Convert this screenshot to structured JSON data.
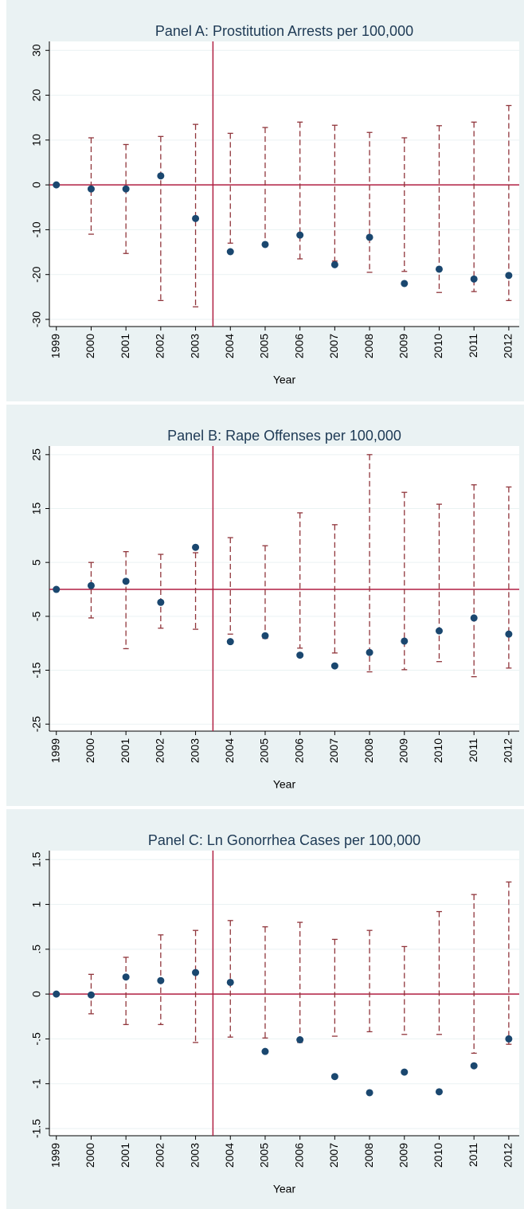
{
  "chart_data": [
    {
      "type": "errorbar",
      "title": "Panel A: Prostitution Arrests per 100,000",
      "xlabel": "Year",
      "x": [
        1999,
        2000,
        2001,
        2002,
        2003,
        2004,
        2005,
        2006,
        2007,
        2008,
        2009,
        2010,
        2011,
        2012
      ],
      "values": [
        0,
        -0.9,
        -0.9,
        2,
        -7.5,
        -14.9,
        -13.3,
        -11.2,
        -17.8,
        -11.7,
        -22,
        -18.8,
        -21,
        -20.2
      ],
      "upper": [
        null,
        10.5,
        9,
        10.8,
        13.5,
        11.5,
        12.8,
        14,
        13.3,
        11.7,
        10.5,
        13.2,
        14,
        17.7
      ],
      "lower": [
        null,
        -11,
        -15.3,
        -25.8,
        -27.2,
        -13,
        -13.3,
        -16.5,
        -17,
        -19.5,
        -19.3,
        -24,
        -23.8,
        -25.8
      ],
      "color": "#1a476f",
      "ci_color": "#90353b",
      "line_color": "#b01f42",
      "hline": 0,
      "vline": 2003.5,
      "xlim": [
        1998.8,
        2012.3
      ],
      "xticks": [
        1999,
        2000,
        2001,
        2002,
        2003,
        2004,
        2005,
        2006,
        2007,
        2008,
        2009,
        2010,
        2011,
        2012
      ],
      "ylim": [
        -31.6,
        32
      ],
      "yticks": [
        -30,
        -20,
        -10,
        0,
        10,
        20,
        30
      ],
      "grid": true
    },
    {
      "type": "errorbar",
      "title": "Panel B: Rape Offenses per 100,000",
      "xlabel": "Year",
      "x": [
        1999,
        2000,
        2001,
        2002,
        2003,
        2004,
        2005,
        2006,
        2007,
        2008,
        2009,
        2010,
        2011,
        2012
      ],
      "values": [
        0,
        0.7,
        1.5,
        -2.4,
        7.8,
        -9.7,
        -8.6,
        -12.2,
        -14.2,
        -11.7,
        -9.6,
        -7.7,
        -5.3,
        -8.3
      ],
      "upper": [
        null,
        5,
        7,
        6.5,
        6.8,
        9.6,
        8.1,
        14.2,
        12,
        25,
        18,
        15.8,
        19.4,
        19
      ],
      "lower": [
        null,
        -5.3,
        -11,
        -7.2,
        -7.4,
        -8.3,
        -9.1,
        -10.9,
        -11.8,
        -15.3,
        -14.9,
        -13.4,
        -16.2,
        -14.6
      ],
      "color": "#1a476f",
      "ci_color": "#90353b",
      "line_color": "#b01f42",
      "hline": 0,
      "vline": 2003.5,
      "xlim": [
        1998.8,
        2012.3
      ],
      "xticks": [
        1999,
        2000,
        2001,
        2002,
        2003,
        2004,
        2005,
        2006,
        2007,
        2008,
        2009,
        2010,
        2011,
        2012
      ],
      "ylim": [
        -26.3,
        26.6
      ],
      "yticks": [
        -25,
        -15,
        -5,
        5,
        15,
        25
      ],
      "grid": true
    },
    {
      "type": "errorbar",
      "title": "Panel C: Ln Gonorrhea Cases per 100,000",
      "xlabel": "Year",
      "x": [
        1999,
        2000,
        2001,
        2002,
        2003,
        2004,
        2005,
        2006,
        2007,
        2008,
        2009,
        2010,
        2011,
        2012
      ],
      "values": [
        0,
        -0.01,
        0.19,
        0.15,
        0.24,
        0.13,
        -0.64,
        -0.51,
        -0.92,
        -1.1,
        -0.87,
        -1.09,
        -0.8,
        -0.5
      ],
      "upper": [
        null,
        0.22,
        0.41,
        0.66,
        0.71,
        0.82,
        0.75,
        0.8,
        0.61,
        0.71,
        0.53,
        0.92,
        1.11,
        1.25
      ],
      "lower": [
        null,
        -0.22,
        -0.34,
        -0.34,
        -0.54,
        -0.48,
        -0.49,
        -0.54,
        -0.47,
        -0.42,
        -0.45,
        -0.45,
        -0.66,
        -0.56
      ],
      "color": "#1a476f",
      "ci_color": "#90353b",
      "line_color": "#b01f42",
      "hline": 0,
      "vline": 2003.5,
      "xlim": [
        1998.8,
        2012.3
      ],
      "xticks": [
        1999,
        2000,
        2001,
        2002,
        2003,
        2004,
        2005,
        2006,
        2007,
        2008,
        2009,
        2010,
        2011,
        2012
      ],
      "ylim": [
        -1.58,
        1.6
      ],
      "yticks": [
        {
          "value": -1.5,
          "label": "-1.5"
        },
        -1,
        {
          "value": -0.5,
          "label": "-.5"
        },
        0,
        {
          "value": 0.5,
          "label": ".5"
        },
        1,
        1.5
      ],
      "grid": true
    }
  ]
}
